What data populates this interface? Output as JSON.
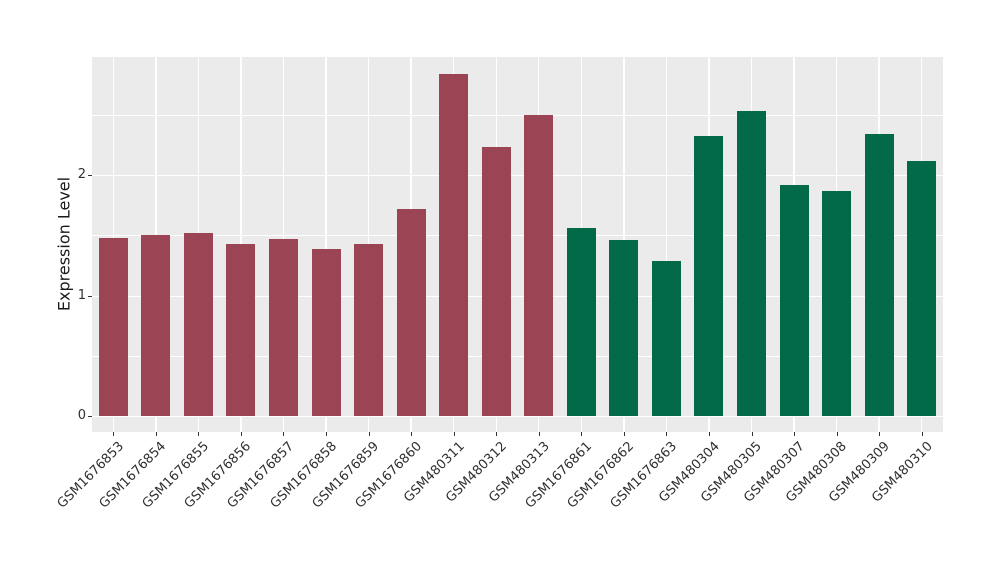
{
  "figure": {
    "background": "#FFFFFF",
    "panel_background": "#EBEBEB",
    "grid_color": "#FFFFFF",
    "axis_text_color": "#303030",
    "tick_mark_color": "#333333"
  },
  "chart_data": {
    "type": "bar",
    "title": "",
    "xlabel": "",
    "ylabel": "Expression Level",
    "ylim": [
      0,
      2.98
    ],
    "yticks": [
      0,
      1,
      2
    ],
    "yminor_ticks": [
      0.5,
      1.5,
      2.5
    ],
    "grid": "white major and minor gridlines on grey panel",
    "legend_position": "none",
    "x_label_rotation_deg": 45,
    "palette": {
      "group1_color": "#9B4453",
      "group1_count": 11,
      "group2_color": "#026949",
      "group2_count": 9
    },
    "categories": [
      "GSM1676853",
      "GSM1676854",
      "GSM1676855",
      "GSM1676856",
      "GSM1676857",
      "GSM1676858",
      "GSM1676859",
      "GSM1676860",
      "GSM480311",
      "GSM480312",
      "GSM480313",
      "GSM1676861",
      "GSM1676862",
      "GSM1676863",
      "GSM480304",
      "GSM480305",
      "GSM480307",
      "GSM480308",
      "GSM480309",
      "GSM480310"
    ],
    "values": [
      1.48,
      1.5,
      1.52,
      1.43,
      1.47,
      1.39,
      1.43,
      1.72,
      2.84,
      2.23,
      2.5,
      1.56,
      1.46,
      1.29,
      2.32,
      2.53,
      1.92,
      1.87,
      2.34,
      2.12
    ],
    "colors": [
      "#9B4453",
      "#9B4453",
      "#9B4453",
      "#9B4453",
      "#9B4453",
      "#9B4453",
      "#9B4453",
      "#9B4453",
      "#9B4453",
      "#9B4453",
      "#9B4453",
      "#026949",
      "#026949",
      "#026949",
      "#026949",
      "#026949",
      "#026949",
      "#026949",
      "#026949",
      "#026949"
    ]
  }
}
